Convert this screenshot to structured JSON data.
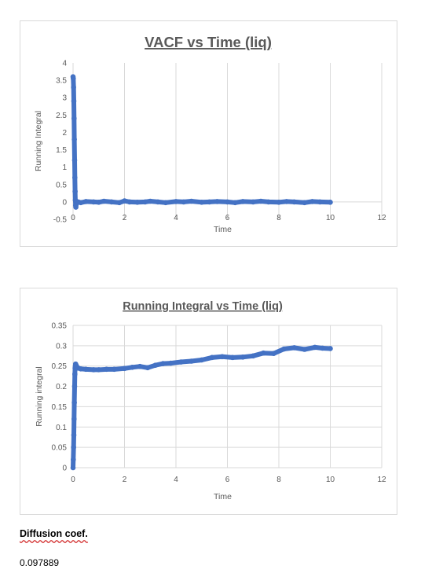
{
  "chart_data": [
    {
      "type": "scatter",
      "title": "VACF vs Time (liq)",
      "xlabel": "Time",
      "ylabel": "Running Integral",
      "xlim": [
        0,
        12
      ],
      "ylim": [
        -0.5,
        4
      ],
      "xticks": [
        0,
        2,
        4,
        6,
        8,
        10,
        12
      ],
      "yticks": [
        -0.5,
        0,
        0.5,
        1,
        1.5,
        2,
        2.5,
        3,
        3.5,
        4
      ],
      "grid": "vertical",
      "marker_color": "#4472c4",
      "series": [
        {
          "x": [
            0,
            0.01,
            0.02,
            0.03,
            0.04,
            0.05,
            0.06,
            0.07,
            0.08,
            0.09,
            0.1,
            0.11,
            0.12,
            0.13,
            0.15,
            0.2,
            0.3,
            0.5,
            0.8,
            1.0,
            1.2,
            1.5,
            1.8,
            2.0,
            2.2,
            2.5,
            2.8,
            3.0,
            3.3,
            3.6,
            4.0,
            4.3,
            4.6,
            5.0,
            5.3,
            5.6,
            6.0,
            6.3,
            6.6,
            7.0,
            7.3,
            7.6,
            8.0,
            8.3,
            8.6,
            9.0,
            9.3,
            9.6,
            10.0
          ],
          "y": [
            3.6,
            3.55,
            3.3,
            2.9,
            2.4,
            1.8,
            1.2,
            0.7,
            0.3,
            0.05,
            -0.1,
            -0.15,
            -0.08,
            -0.05,
            -0.03,
            0,
            -0.02,
            0.01,
            0,
            -0.01,
            0.02,
            0,
            -0.02,
            0.03,
            0,
            -0.01,
            0,
            0.02,
            0,
            -0.02,
            0.01,
            0,
            0.02,
            -0.01,
            0,
            0.01,
            0,
            -0.02,
            0.01,
            0,
            0.02,
            0,
            -0.01,
            0.01,
            0,
            -0.02,
            0.01,
            0,
            -0.01
          ]
        }
      ]
    },
    {
      "type": "scatter",
      "title": "Running Integral vs Time (liq)",
      "xlabel": "Time",
      "ylabel": "Running integral",
      "xlim": [
        0,
        12
      ],
      "ylim": [
        0,
        0.35
      ],
      "xticks": [
        0,
        2,
        4,
        6,
        8,
        10,
        12
      ],
      "yticks": [
        0,
        0.05,
        0.1,
        0.15,
        0.2,
        0.25,
        0.3,
        0.35
      ],
      "grid": "both",
      "marker_color": "#4472c4",
      "series": [
        {
          "x": [
            0,
            0.01,
            0.02,
            0.03,
            0.04,
            0.05,
            0.06,
            0.07,
            0.08,
            0.09,
            0.1,
            0.12,
            0.15,
            0.2,
            0.3,
            0.5,
            0.8,
            1.0,
            1.3,
            1.6,
            2.0,
            2.3,
            2.6,
            2.9,
            3.2,
            3.5,
            3.8,
            4.2,
            4.6,
            5.0,
            5.4,
            5.8,
            6.2,
            6.6,
            7.0,
            7.4,
            7.8,
            8.2,
            8.6,
            9.0,
            9.4,
            9.7,
            10.0
          ],
          "y": [
            0,
            0.02,
            0.05,
            0.08,
            0.12,
            0.16,
            0.2,
            0.23,
            0.245,
            0.25,
            0.255,
            0.252,
            0.248,
            0.245,
            0.243,
            0.242,
            0.241,
            0.241,
            0.242,
            0.242,
            0.244,
            0.247,
            0.249,
            0.246,
            0.252,
            0.256,
            0.257,
            0.26,
            0.262,
            0.265,
            0.271,
            0.273,
            0.271,
            0.272,
            0.275,
            0.282,
            0.281,
            0.292,
            0.295,
            0.291,
            0.296,
            0.294,
            0.293
          ]
        }
      ]
    }
  ],
  "document": {
    "label": "Diffusion coef.",
    "value": "0.097889"
  }
}
